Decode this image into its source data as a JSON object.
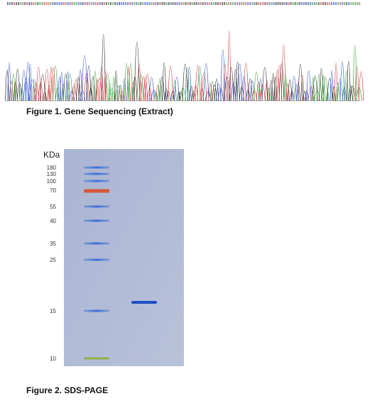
{
  "figure1": {
    "caption": "Figure 1. Gene Sequencing (Extract)"
  },
  "figure2": {
    "caption": "Figure 2. SDS-PAGE",
    "unit": "KDa",
    "markers": [
      180,
      130,
      100,
      70,
      55,
      40,
      35,
      25,
      15,
      10
    ]
  }
}
